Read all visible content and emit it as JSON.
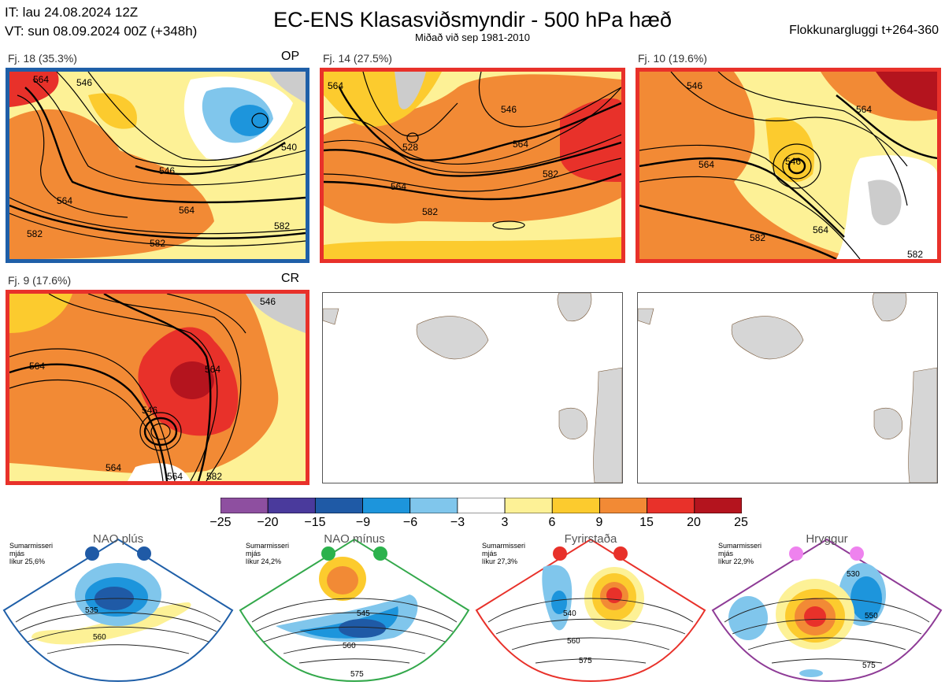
{
  "header": {
    "it_line": "IT: lau 24.08.2024 12Z",
    "vt_line": "VT: sun 08.09.2024 00Z  (+348h)",
    "title": "EC-ENS Klasasviðsmyndir - 500 hPa hæð",
    "subtitle": "Miðað við sep 1981-2010",
    "window": "Flokkunargluggi t+264-360"
  },
  "panels": [
    {
      "label": "Fj. 18 (35.3%)",
      "tag": "OP",
      "frame_color": "#1f5fa8",
      "contours": [
        "564",
        "546",
        "564",
        "564",
        "546",
        "582",
        "582",
        "582",
        "540"
      ]
    },
    {
      "label": "Fj. 14 (27.5%)",
      "tag": "",
      "frame_color": "#e8312a",
      "contours": [
        "564",
        "546",
        "528",
        "564",
        "564",
        "582",
        "582"
      ]
    },
    {
      "label": "Fj. 10 (19.6%)",
      "tag": "",
      "frame_color": "#e8312a",
      "contours": [
        "546",
        "564",
        "546",
        "564",
        "564",
        "582",
        "582"
      ]
    },
    {
      "label": "Fj. 9 (17.6%)",
      "tag": "CR",
      "frame_color": "#e8312a",
      "contours": [
        "546",
        "564",
        "564",
        "546",
        "564",
        "564",
        "582"
      ]
    }
  ],
  "colorbar": {
    "ticks": [
      "−25",
      "−20",
      "−15",
      "−9",
      "−6",
      "−3",
      "3",
      "6",
      "9",
      "15",
      "20",
      "25"
    ],
    "colors": [
      "#8e4fa0",
      "#4a3a9c",
      "#1f5aa6",
      "#1d95dc",
      "#80c6ec",
      "#ffffff",
      "#fdf196",
      "#fccb2e",
      "#f28a35",
      "#e8312a",
      "#b4141e"
    ]
  },
  "regimes": [
    {
      "title": "NAO plús",
      "note": [
        "Sumarmisseri",
        "mjás",
        "líkur 25,6%"
      ],
      "color": "#1f5fa8",
      "dot": "#1f5aa6",
      "contours": [
        "535",
        "560"
      ]
    },
    {
      "title": "NAO mínus",
      "note": [
        "Sumarmisseri",
        "mjás",
        "líkur 24,2%"
      ],
      "color": "#33a84b",
      "dot": "#2bb24c",
      "contours": [
        "545",
        "560",
        "575"
      ]
    },
    {
      "title": "Fyrirstaða",
      "note": [
        "Sumarmisseri",
        "mjás",
        "líkur 27,3%"
      ],
      "color": "#e8312a",
      "dot": "#e8312a",
      "contours": [
        "540",
        "560",
        "575"
      ]
    },
    {
      "title": "Hryggur",
      "note": [
        "Sumarmisseri",
        "mjás",
        "líkur 22,9%"
      ],
      "color": "#8e3b96",
      "dot": "#ee82ee",
      "contours": [
        "530",
        "550",
        "575"
      ]
    }
  ]
}
